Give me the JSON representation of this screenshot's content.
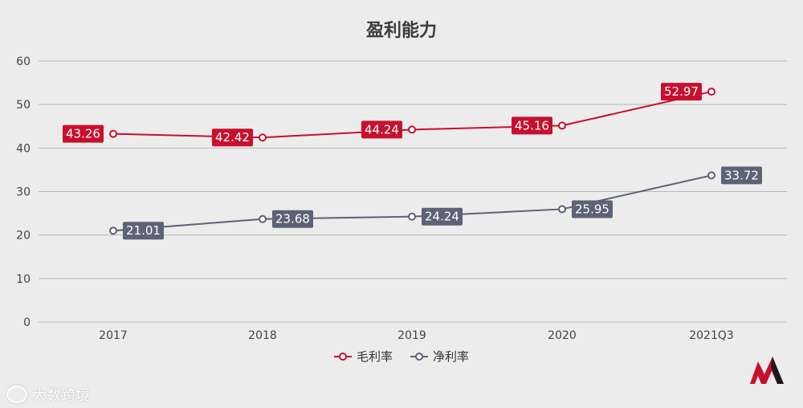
{
  "chart_data": {
    "type": "line",
    "title": "盈利能力",
    "categories": [
      "2017",
      "2018",
      "2019",
      "2020",
      "2021Q3"
    ],
    "series": [
      {
        "name": "毛利率",
        "color": "#c8102e",
        "values": [
          43.26,
          42.42,
          44.24,
          45.16,
          52.97
        ],
        "labels": [
          "43.26",
          "42.42",
          "44.24",
          "45.16",
          "52.97"
        ],
        "label_side": [
          "left",
          "left",
          "left",
          "left",
          "left"
        ]
      },
      {
        "name": "净利率",
        "color": "#5d6275",
        "values": [
          21.01,
          23.68,
          24.24,
          25.95,
          33.72
        ],
        "labels": [
          "21.01",
          "23.68",
          "24.24",
          "25.95",
          "33.72"
        ],
        "label_side": [
          "right",
          "right",
          "right",
          "right",
          "right"
        ]
      }
    ],
    "yticks": [
      "0",
      "10",
      "20",
      "30",
      "40",
      "50",
      "60"
    ],
    "ylim": [
      0,
      60
    ],
    "grid": true,
    "legend_position": "bottom-center"
  },
  "watermark": {
    "text": "大数跨境",
    "icon": "chat-bubble-icon"
  },
  "logo": {
    "name": "brand-logo-icon",
    "color": "#c8102e"
  }
}
